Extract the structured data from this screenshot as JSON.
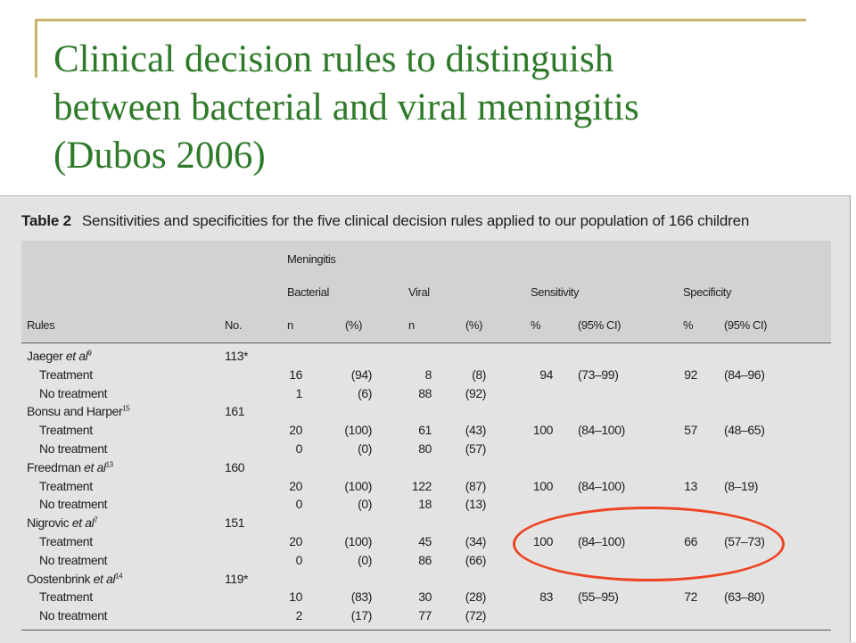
{
  "slide": {
    "title_lines": [
      "Clinical decision rules to distinguish",
      "between bacterial and viral meningitis",
      "(Dubos 2006)"
    ],
    "accent_color": "#2f7a2a",
    "frame_color": "#c8b46a",
    "highlight_color": "#ee4322"
  },
  "table": {
    "label": "Table 2",
    "caption": "Sensitivities and specificities for the five clinical decision rules applied to our population of 166 children",
    "header": {
      "meningitis": "Meningitis",
      "bacterial": "Bacterial",
      "viral": "Viral",
      "sensitivity": "Sensitivity",
      "specificity": "Specificity",
      "rules": "Rules",
      "no": "No.",
      "n1": "n",
      "pct1": "(%)",
      "n2": "n",
      "pct2": "(%)",
      "pct3": "%",
      "ci3": "(95% CI)",
      "pct4": "%",
      "ci4": "(95% CI)"
    },
    "rules": [
      {
        "name_plain": "Jaeger ",
        "name_ital": "et al",
        "ref": "9",
        "no": "113*",
        "treat": {
          "label": "Treatment",
          "bn": "16",
          "bp": "(94)",
          "vn": "8",
          "vp": "(8)",
          "sens": "94",
          "sens_ci": "(73–99)",
          "spec": "92",
          "spec_ci": "(84–96)"
        },
        "notreat": {
          "label": "No treatment",
          "bn": "1",
          "bp": "(6)",
          "vn": "88",
          "vp": "(92)"
        }
      },
      {
        "name_plain": "Bonsu and Harper",
        "name_ital": "",
        "ref": "15",
        "no": "161",
        "treat": {
          "label": "Treatment",
          "bn": "20",
          "bp": "(100)",
          "vn": "61",
          "vp": "(43)",
          "sens": "100",
          "sens_ci": "(84–100)",
          "spec": "57",
          "spec_ci": "(48–65)"
        },
        "notreat": {
          "label": "No treatment",
          "bn": "0",
          "bp": "(0)",
          "vn": "80",
          "vp": "(57)"
        }
      },
      {
        "name_plain": "Freedman ",
        "name_ital": "et al",
        "ref": "13",
        "no": "160",
        "treat": {
          "label": "Treatment",
          "bn": "20",
          "bp": "(100)",
          "vn": "122",
          "vp": "(87)",
          "sens": "100",
          "sens_ci": "(84–100)",
          "spec": "13",
          "spec_ci": "(8–19)"
        },
        "notreat": {
          "label": "No treatment",
          "bn": "0",
          "bp": "(0)",
          "vn": "18",
          "vp": "(13)"
        }
      },
      {
        "name_plain": "Nigrovic ",
        "name_ital": "et al",
        "ref": "7",
        "no": "151",
        "treat": {
          "label": "Treatment",
          "bn": "20",
          "bp": "(100)",
          "vn": "45",
          "vp": "(34)",
          "sens": "100",
          "sens_ci": "(84–100)",
          "spec": "66",
          "spec_ci": "(57–73)"
        },
        "notreat": {
          "label": "No treatment",
          "bn": "0",
          "bp": "(0)",
          "vn": "86",
          "vp": "(66)"
        }
      },
      {
        "name_plain": "Oostenbrink ",
        "name_ital": "et al",
        "ref": "14",
        "no": "119*",
        "treat": {
          "label": "Treatment",
          "bn": "10",
          "bp": "(83)",
          "vn": "30",
          "vp": "(28)",
          "sens": "83",
          "sens_ci": "(55–95)",
          "spec": "72",
          "spec_ci": "(63–80)"
        },
        "notreat": {
          "label": "No treatment",
          "bn": "2",
          "bp": "(17)",
          "vn": "77",
          "vp": "(72)"
        }
      }
    ]
  }
}
